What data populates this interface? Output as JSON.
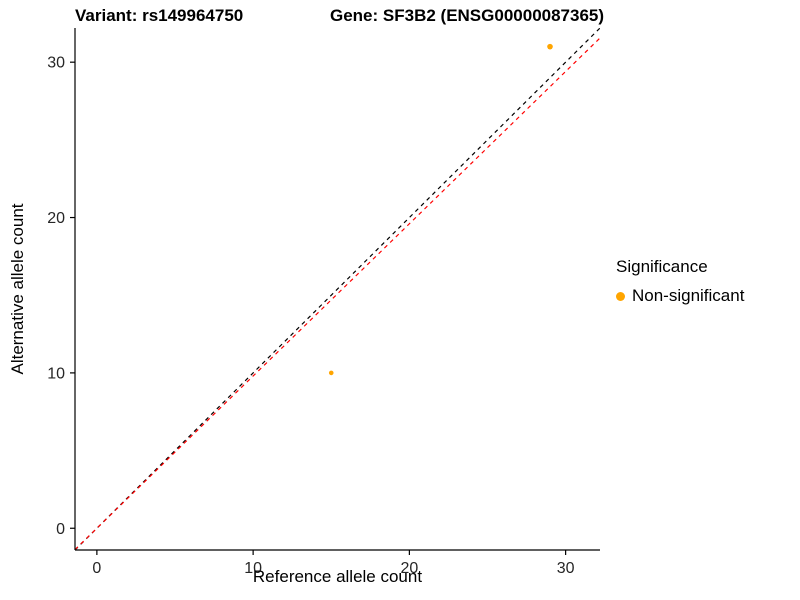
{
  "titles": {
    "variant": "Variant: rs149964750",
    "gene": "Gene: SF3B2 (ENSG00000087365)"
  },
  "legend": {
    "title": "Significance",
    "items": [
      {
        "label": "Non-significant",
        "color": "#FFA500"
      }
    ]
  },
  "chart_data": {
    "type": "scatter",
    "title": "Variant: rs149964750  Gene: SF3B2 (ENSG00000087365)",
    "xlabel": "Reference allele count",
    "ylabel": "Alternative allele count",
    "xlim": [
      -1.4,
      32.2
    ],
    "ylim": [
      -1.4,
      32.2
    ],
    "xticks": [
      0,
      10,
      20,
      30
    ],
    "yticks": [
      0,
      10,
      20,
      30
    ],
    "grid": false,
    "legend_position": "right",
    "points": [
      {
        "x": 15,
        "y": 10,
        "series": "Non-significant",
        "color": "#FFA500",
        "r": 2.3
      },
      {
        "x": 29,
        "y": 31,
        "series": "Non-significant",
        "color": "#FFA500",
        "r": 2.8
      }
    ],
    "lines": [
      {
        "name": "identity-line",
        "slope": 1.0,
        "intercept": 0,
        "color": "#000000",
        "dash": "4 4"
      },
      {
        "name": "fitted-line",
        "slope": 0.98,
        "intercept": 0,
        "color": "#FF0000",
        "dash": "4 4"
      }
    ],
    "axis_color": "#000000",
    "tick_label_color": "#262626"
  }
}
